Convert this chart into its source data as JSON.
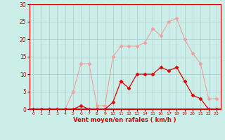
{
  "x": [
    0,
    1,
    2,
    3,
    4,
    5,
    6,
    7,
    8,
    9,
    10,
    11,
    12,
    13,
    14,
    15,
    16,
    17,
    18,
    19,
    20,
    21,
    22,
    23
  ],
  "y_rafales": [
    0,
    0,
    0,
    0,
    0,
    5,
    13,
    13,
    1,
    1,
    15,
    18,
    18,
    18,
    19,
    23,
    21,
    25,
    26,
    20,
    16,
    13,
    3,
    3
  ],
  "y_moyen": [
    0,
    0,
    0,
    0,
    0,
    0,
    1,
    0,
    0,
    0,
    2,
    8,
    6,
    10,
    10,
    10,
    12,
    11,
    12,
    8,
    4,
    3,
    0,
    0
  ],
  "bg_color": "#cceee8",
  "grid_color": "#aacccc",
  "line_color_rafales": "#f0a0a0",
  "line_color_moyen": "#dd0000",
  "xlabel": "Vent moyen/en rafales ( km/h )",
  "xlabel_color": "#dd0000",
  "tick_color": "#dd0000",
  "ylim": [
    0,
    30
  ],
  "yticks": [
    0,
    5,
    10,
    15,
    20,
    25,
    30
  ],
  "xlim": [
    -0.5,
    23.5
  ]
}
